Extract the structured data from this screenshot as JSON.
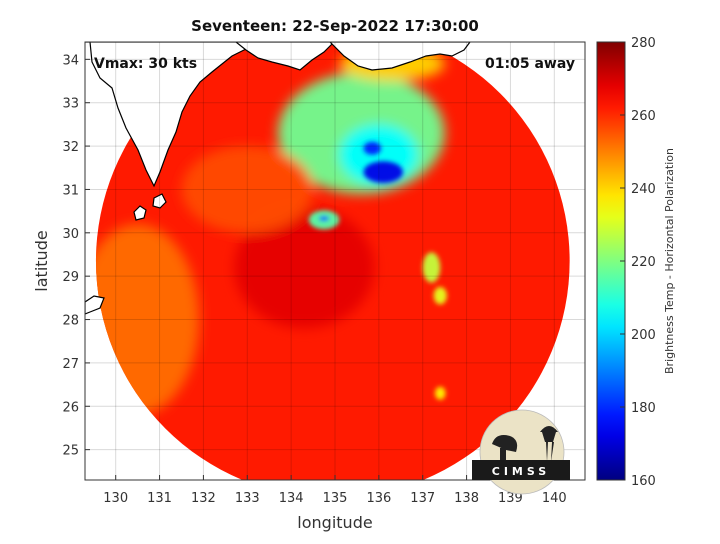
{
  "chart_data": {
    "type": "heatmap",
    "title": "Seventeen: 22-Sep-2022 17:30:00",
    "xlabel": "longitude",
    "ylabel": "latitude",
    "xlim": [
      129.3,
      140.7
    ],
    "ylim": [
      24.3,
      34.4
    ],
    "x_ticks": [
      130,
      131,
      132,
      133,
      134,
      135,
      136,
      137,
      138,
      139,
      140
    ],
    "y_ticks": [
      25,
      26,
      27,
      28,
      29,
      30,
      31,
      32,
      33,
      34
    ],
    "grid": true,
    "annotations": {
      "vmax": "Vmax: 30 kts",
      "time_offset": "01:05 away"
    },
    "colorbar": {
      "label": "Brightness Temp - Horizontal Polarization",
      "range": [
        160,
        280
      ],
      "ticks": [
        160,
        180,
        200,
        220,
        240,
        260,
        280
      ],
      "colormap": "jet"
    },
    "swath": {
      "center_lon": 134.95,
      "center_lat": 29.35,
      "radius_deg": 5.4
    },
    "background_value": 262,
    "features": [
      {
        "lon": 135.6,
        "lat": 32.3,
        "rlon": 1.9,
        "rlat": 1.4,
        "value": 218
      },
      {
        "lon": 136.0,
        "lat": 31.8,
        "rlon": 0.9,
        "rlat": 0.7,
        "value": 205
      },
      {
        "lon": 136.1,
        "lat": 31.4,
        "rlon": 0.45,
        "rlat": 0.25,
        "value": 172
      },
      {
        "lon": 135.85,
        "lat": 31.95,
        "rlon": 0.2,
        "rlat": 0.15,
        "value": 178
      },
      {
        "lon": 134.75,
        "lat": 30.3,
        "rlon": 0.35,
        "rlat": 0.22,
        "value": 215
      },
      {
        "lon": 134.75,
        "lat": 30.33,
        "rlon": 0.12,
        "rlat": 0.06,
        "value": 185
      },
      {
        "lon": 137.2,
        "lat": 29.2,
        "rlon": 0.2,
        "rlat": 0.35,
        "value": 228
      },
      {
        "lon": 137.4,
        "lat": 28.55,
        "rlon": 0.15,
        "rlat": 0.2,
        "value": 232
      },
      {
        "lon": 137.4,
        "lat": 26.3,
        "rlon": 0.12,
        "rlat": 0.15,
        "value": 236
      },
      {
        "lon": 136.3,
        "lat": 33.9,
        "rlon": 1.2,
        "rlat": 0.4,
        "value": 240
      },
      {
        "lon": 134.3,
        "lat": 29.2,
        "rlon": 1.6,
        "rlat": 1.4,
        "value": 268
      },
      {
        "lon": 133.0,
        "lat": 31.0,
        "rlon": 1.5,
        "rlat": 1.0,
        "value": 256
      },
      {
        "lon": 130.5,
        "lat": 28.0,
        "rlon": 1.4,
        "rlat": 2.2,
        "value": 252
      }
    ],
    "coastline_color": "#ffffff",
    "land_color": "#ffffff",
    "logo_text": "CIMSS"
  }
}
